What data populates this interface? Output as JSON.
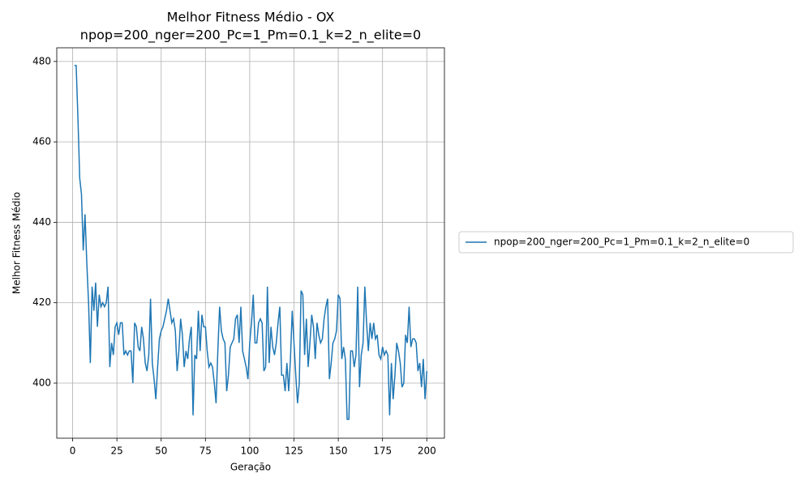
{
  "chart_data": {
    "type": "line",
    "title": "Melhor Fitness Médio - OX",
    "subtitle": "npop=200_nger=200_Pc=1_Pm=0.1_k=2_n_elite=0",
    "x_label": "Geração",
    "y_label": "Melhor Fitness Médio",
    "x": [
      1,
      2,
      3,
      4,
      5,
      6,
      7,
      8,
      9,
      10,
      11,
      12,
      13,
      14,
      15,
      16,
      17,
      18,
      19,
      20,
      21,
      22,
      23,
      24,
      25,
      26,
      27,
      28,
      29,
      30,
      31,
      32,
      33,
      34,
      35,
      36,
      37,
      38,
      39,
      40,
      41,
      42,
      43,
      44,
      45,
      46,
      47,
      48,
      49,
      50,
      51,
      52,
      53,
      54,
      55,
      56,
      57,
      58,
      59,
      60,
      61,
      62,
      63,
      64,
      65,
      66,
      67,
      68,
      69,
      70,
      71,
      72,
      73,
      74,
      75,
      76,
      77,
      78,
      79,
      80,
      81,
      82,
      83,
      84,
      85,
      86,
      87,
      88,
      89,
      90,
      91,
      92,
      93,
      94,
      95,
      96,
      97,
      98,
      99,
      100,
      101,
      102,
      103,
      104,
      105,
      106,
      107,
      108,
      109,
      110,
      111,
      112,
      113,
      114,
      115,
      116,
      117,
      118,
      119,
      120,
      121,
      122,
      123,
      124,
      125,
      126,
      127,
      128,
      129,
      130,
      131,
      132,
      133,
      134,
      135,
      136,
      137,
      138,
      139,
      140,
      141,
      142,
      143,
      144,
      145,
      146,
      147,
      148,
      149,
      150,
      151,
      152,
      153,
      154,
      155,
      156,
      157,
      158,
      159,
      160,
      161,
      162,
      163,
      164,
      165,
      166,
      167,
      168,
      169,
      170,
      171,
      172,
      173,
      174,
      175,
      176,
      177,
      178,
      179,
      180,
      181,
      182,
      183,
      184,
      185,
      186,
      187,
      188,
      189,
      190,
      191,
      192,
      193,
      194,
      195,
      196,
      197,
      198,
      199,
      200
    ],
    "series": [
      {
        "name": "npop=200_nger=200_Pc=1_Pm=0.1_k=2_n_elite=0",
        "color": "#1f77b4",
        "values": [
          479,
          479,
          466,
          451,
          447,
          433,
          442,
          430,
          420,
          405,
          424,
          418,
          425,
          414,
          422,
          419,
          420,
          419,
          420,
          424,
          404,
          410,
          407,
          414,
          415,
          412,
          415,
          415,
          407,
          408,
          407,
          408,
          408,
          400,
          415,
          414,
          409,
          408,
          414,
          411,
          405,
          403,
          407,
          421,
          405,
          401,
          396,
          404,
          411,
          413,
          414,
          416,
          418,
          421,
          418,
          415,
          416,
          413,
          403,
          408,
          416,
          412,
          404,
          408,
          406,
          411,
          414,
          392,
          407,
          406,
          418,
          408,
          417,
          414,
          414,
          408,
          404,
          405,
          404,
          400,
          395,
          408,
          419,
          413,
          411,
          410,
          398,
          402,
          409,
          410,
          411,
          416,
          417,
          410,
          419,
          408,
          406,
          404,
          401,
          410,
          415,
          422,
          410,
          410,
          415,
          416,
          415,
          403,
          404,
          424,
          405,
          414,
          409,
          407,
          410,
          415,
          419,
          402,
          402,
          398,
          405,
          398,
          406,
          418,
          410,
          402,
          395,
          400,
          423,
          422,
          407,
          416,
          404,
          410,
          417,
          414,
          406,
          415,
          412,
          410,
          411,
          416,
          419,
          421,
          401,
          405,
          410,
          411,
          413,
          422,
          421,
          406,
          409,
          406,
          391,
          391,
          408,
          408,
          404,
          407,
          424,
          399,
          407,
          410,
          424,
          415,
          408,
          415,
          411,
          415,
          411,
          412,
          407,
          406,
          409,
          407,
          408,
          407,
          392,
          405,
          396,
          402,
          410,
          408,
          405,
          399,
          400,
          412,
          410,
          419,
          409,
          411,
          411,
          410,
          403,
          405,
          399,
          406,
          396,
          403
        ]
      }
    ],
    "xlim": [
      -8.95,
      209.95
    ],
    "ylim": [
      386.3,
      483.4
    ],
    "xticks": [
      0,
      25,
      50,
      75,
      100,
      125,
      150,
      175,
      200
    ],
    "yticks": [
      400,
      420,
      440,
      460,
      480
    ],
    "grid": true,
    "legend": "right"
  }
}
